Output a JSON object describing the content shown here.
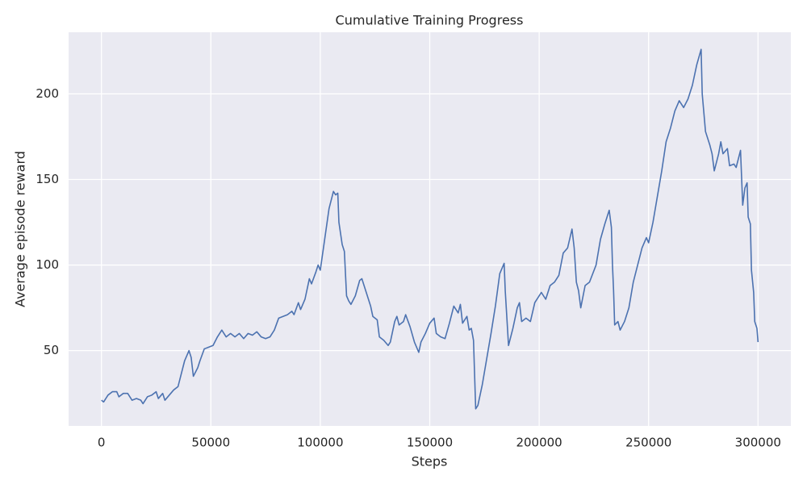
{
  "chart_data": {
    "type": "line",
    "title": "Cumulative Training Progress",
    "x_label": "Steps",
    "y_label": "Average episode reward",
    "color": "#4c72b0",
    "grid": true,
    "xlim": [
      -15000,
      315000
    ],
    "ylim": [
      6,
      236
    ],
    "xticks": [
      0,
      50000,
      100000,
      150000,
      200000,
      250000,
      300000
    ],
    "yticks": [
      50,
      100,
      150,
      200
    ],
    "x": [
      0,
      1000,
      3000,
      5000,
      7000,
      8000,
      10000,
      12000,
      14000,
      16000,
      18000,
      19000,
      21000,
      23000,
      25000,
      26000,
      28000,
      29000,
      31000,
      33000,
      35000,
      36000,
      38000,
      40000,
      41000,
      42000,
      44000,
      45000,
      47000,
      49000,
      51000,
      53000,
      55000,
      57000,
      59000,
      61000,
      63000,
      65000,
      67000,
      69000,
      71000,
      73000,
      75000,
      77000,
      79000,
      81000,
      83000,
      85000,
      87000,
      88000,
      90000,
      91000,
      93000,
      95000,
      96000,
      98000,
      99000,
      100000,
      102000,
      104000,
      106000,
      107000,
      108000,
      108500,
      110000,
      111000,
      112000,
      113000,
      114000,
      116000,
      118000,
      119000,
      121000,
      123000,
      124000,
      126000,
      127000,
      129000,
      131000,
      132000,
      134000,
      135000,
      136000,
      138000,
      139000,
      141000,
      143000,
      145000,
      146000,
      148000,
      150000,
      152000,
      153000,
      155000,
      157000,
      159000,
      161000,
      163000,
      164000,
      165000,
      167000,
      168000,
      169000,
      170000,
      171000,
      172000,
      174000,
      176000,
      178000,
      180000,
      182000,
      184000,
      184500,
      186000,
      188000,
      190000,
      191000,
      192000,
      194000,
      196000,
      198000,
      199000,
      201000,
      202000,
      203000,
      205000,
      207000,
      209000,
      211000,
      213000,
      215000,
      216000,
      217000,
      218000,
      219000,
      221000,
      223000,
      226000,
      228000,
      230000,
      232000,
      233000,
      233500,
      234000,
      234500,
      236000,
      237000,
      239000,
      241000,
      243000,
      245000,
      247000,
      249000,
      250000,
      252000,
      254000,
      256000,
      258000,
      260000,
      262000,
      264000,
      266000,
      268000,
      270000,
      272000,
      274000,
      274500,
      276000,
      278000,
      279000,
      280000,
      282000,
      283000,
      284000,
      286000,
      287000,
      289000,
      290000,
      292000,
      293000,
      294000,
      295000,
      295500,
      296500,
      297000,
      298000,
      298500,
      299500,
      300000
    ],
    "values": [
      21,
      20,
      24,
      26,
      26,
      23,
      25,
      25,
      21,
      22,
      21,
      19,
      23,
      24,
      26,
      22,
      25,
      21,
      24,
      27,
      29,
      34,
      44,
      50,
      46,
      35,
      40,
      44,
      51,
      52,
      53,
      58,
      62,
      58,
      60,
      58,
      60,
      57,
      60,
      59,
      61,
      58,
      57,
      58,
      62,
      69,
      70,
      71,
      73,
      71,
      78,
      74,
      80,
      92,
      89,
      96,
      100,
      97,
      115,
      133,
      143,
      141,
      142,
      125,
      112,
      108,
      82,
      79,
      77,
      82,
      91,
      92,
      84,
      76,
      70,
      68,
      58,
      56,
      53,
      55,
      67,
      70,
      65,
      67,
      71,
      64,
      55,
      49,
      55,
      60,
      66,
      69,
      60,
      58,
      57,
      66,
      76,
      72,
      77,
      66,
      70,
      62,
      63,
      56,
      16,
      18,
      30,
      45,
      60,
      76,
      95,
      101,
      85,
      53,
      63,
      75,
      78,
      67,
      69,
      67,
      78,
      80,
      84,
      82,
      80,
      88,
      90,
      94,
      107,
      110,
      121,
      110,
      90,
      85,
      75,
      88,
      90,
      100,
      115,
      124,
      132,
      122,
      100,
      85,
      65,
      67,
      62,
      67,
      75,
      90,
      100,
      110,
      116,
      113,
      125,
      140,
      155,
      172,
      180,
      190,
      196,
      192,
      197,
      205,
      217,
      226,
      200,
      178,
      170,
      165,
      155,
      165,
      172,
      165,
      168,
      158,
      159,
      157,
      167,
      135,
      145,
      148,
      128,
      124,
      97,
      84,
      67,
      63,
      55
    ]
  }
}
